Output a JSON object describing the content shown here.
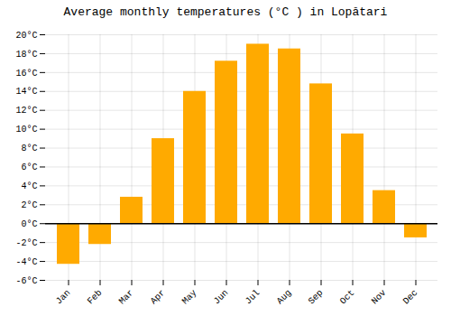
{
  "chart_data": {
    "type": "bar",
    "title": "Average monthly temperatures (°C ) in Lopătari",
    "categories": [
      "Jan",
      "Feb",
      "Mar",
      "Apr",
      "May",
      "Jun",
      "Jul",
      "Aug",
      "Sep",
      "Oct",
      "Nov",
      "Dec"
    ],
    "values": [
      -4.3,
      -2.2,
      2.8,
      9.0,
      14.0,
      17.2,
      19.0,
      18.5,
      14.8,
      9.5,
      3.5,
      -1.5
    ],
    "color": "#FFAA00",
    "ylim": [
      -6,
      20
    ],
    "yticks": [
      {
        "value": -6,
        "label": "-6°C"
      },
      {
        "value": -4,
        "label": "-4°C"
      },
      {
        "value": -2,
        "label": "-2°C"
      },
      {
        "value": 0,
        "label": "0°C"
      },
      {
        "value": 2,
        "label": "2°C"
      },
      {
        "value": 4,
        "label": "4°C"
      },
      {
        "value": 6,
        "label": "6°C"
      },
      {
        "value": 8,
        "label": "8°C"
      },
      {
        "value": 10,
        "label": "10°C"
      },
      {
        "value": 12,
        "label": "12°C"
      },
      {
        "value": 14,
        "label": "14°C"
      },
      {
        "value": 16,
        "label": "16°C"
      },
      {
        "value": 18,
        "label": "18°C"
      },
      {
        "value": 20,
        "label": "20°C"
      }
    ],
    "grid": true
  }
}
